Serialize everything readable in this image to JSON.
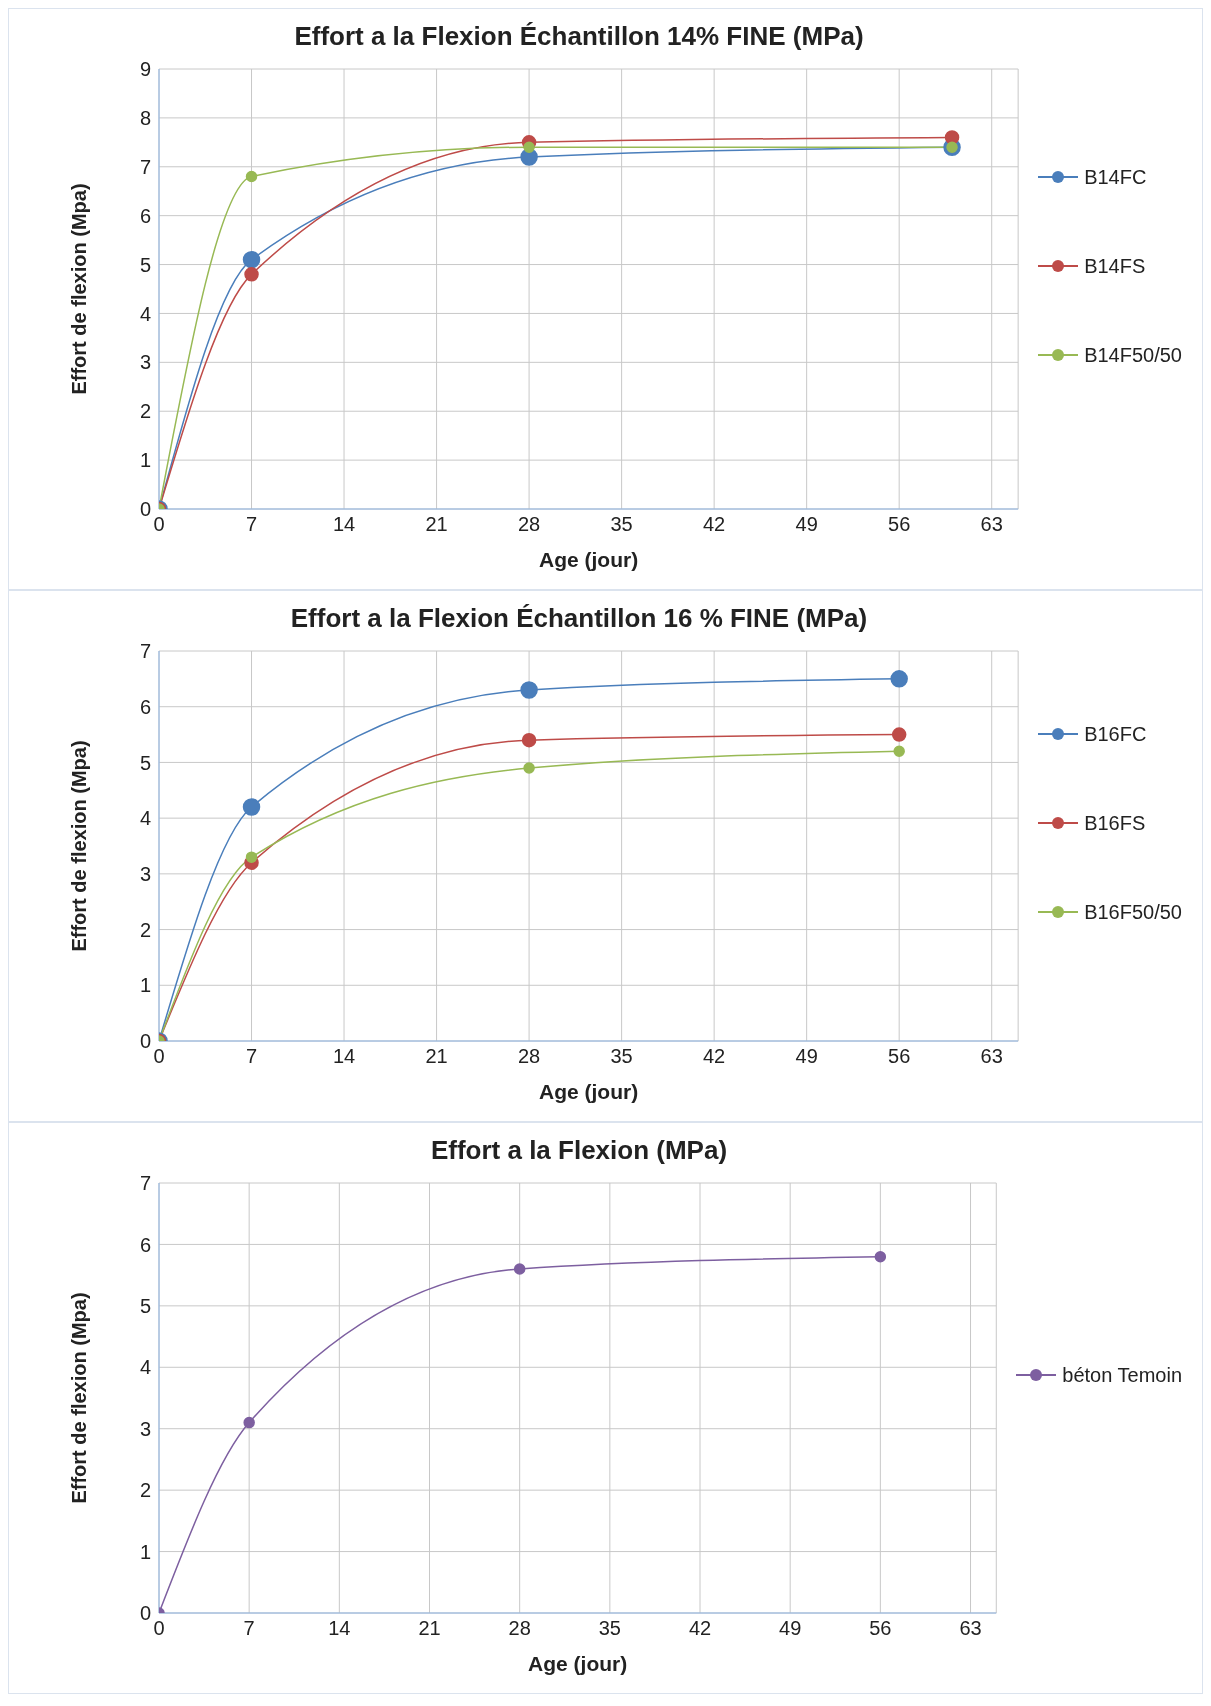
{
  "chart_data": [
    {
      "type": "line",
      "title": "Effort a la Flexion Échantillon  14% FINE   (MPa)",
      "xlabel": "Age (jour)",
      "ylabel": "Effort de  flexion (Mpa)",
      "x": [
        0,
        7,
        28,
        60
      ],
      "xlim": [
        0,
        65
      ],
      "xticks": [
        0,
        7,
        14,
        21,
        28,
        35,
        42,
        49,
        56,
        63
      ],
      "ylim": [
        0,
        9
      ],
      "yticks": [
        0,
        1,
        2,
        3,
        4,
        5,
        6,
        7,
        8,
        9
      ],
      "grid": true,
      "legend": "right",
      "marker": "circle",
      "series": [
        {
          "name": "B14FC",
          "color": "#4a7ebb",
          "values": [
            0,
            5.1,
            7.2,
            7.4
          ]
        },
        {
          "name": "B14FS",
          "color": "#be4b48",
          "values": [
            0,
            4.8,
            7.5,
            7.6
          ]
        },
        {
          "name": "B14F50/50",
          "color": "#98b954",
          "values": [
            0,
            6.8,
            7.4,
            7.4
          ]
        }
      ]
    },
    {
      "type": "line",
      "title": "Effort a la Flexion Échantillon  16 % FINE   (MPa)",
      "xlabel": "Age (jour)",
      "ylabel": "Effort de  flexion (Mpa)",
      "x": [
        0,
        7,
        28,
        56
      ],
      "xlim": [
        0,
        65
      ],
      "xticks": [
        0,
        7,
        14,
        21,
        28,
        35,
        42,
        49,
        56,
        63
      ],
      "ylim": [
        0,
        7
      ],
      "yticks": [
        0,
        1,
        2,
        3,
        4,
        5,
        6,
        7
      ],
      "grid": true,
      "legend": "right",
      "marker": "circle",
      "series": [
        {
          "name": "B16FC",
          "color": "#4a7ebb",
          "values": [
            0,
            4.2,
            6.3,
            6.5
          ]
        },
        {
          "name": "B16FS",
          "color": "#be4b48",
          "values": [
            0,
            3.2,
            5.4,
            5.5
          ]
        },
        {
          "name": "B16F50/50",
          "color": "#98b954",
          "values": [
            0,
            3.3,
            4.9,
            5.2
          ]
        }
      ]
    },
    {
      "type": "line",
      "title": "Effort a la Flexion (MPa)",
      "xlabel": "Age (jour)",
      "ylabel": "Effort de  flexion (Mpa)",
      "x": [
        0,
        7,
        28,
        56
      ],
      "xlim": [
        0,
        65
      ],
      "xticks": [
        0,
        7,
        14,
        21,
        28,
        35,
        42,
        49,
        56,
        63
      ],
      "ylim": [
        0,
        7
      ],
      "yticks": [
        0,
        1,
        2,
        3,
        4,
        5,
        6,
        7
      ],
      "grid": true,
      "legend": "right",
      "marker": "circle",
      "series": [
        {
          "name": "béton Temoin",
          "color": "#7d5fa0",
          "values": [
            0,
            3.1,
            5.6,
            5.8
          ]
        }
      ]
    }
  ]
}
